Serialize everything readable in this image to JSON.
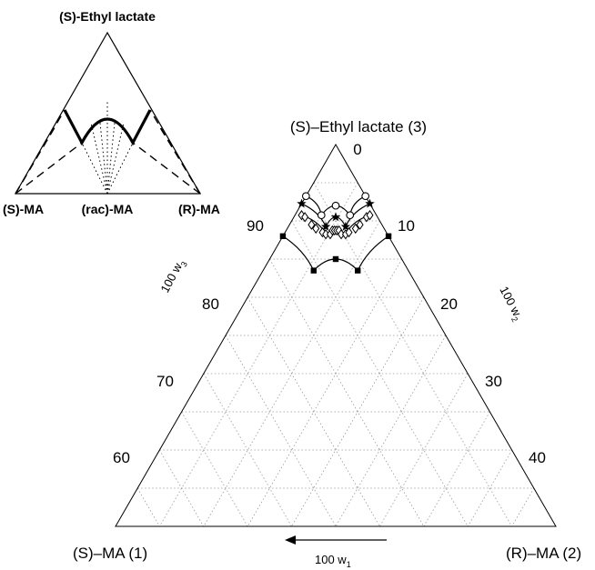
{
  "chart_data": [
    {
      "type": "ternary-schematic",
      "labels": {
        "top": "(S)-Ethyl lactate",
        "left": "(S)-MA",
        "middle": "(rac)-MA",
        "right": "(R)-MA"
      }
    },
    {
      "type": "ternary",
      "labels": {
        "top": "(S)–Ethyl lactate (3)",
        "left": "(S)–MA (1)",
        "right": "(R)–MA (2)",
        "axis_w1": "100 w",
        "axis_w1_sub": "1",
        "axis_w2": "100 w",
        "axis_w2_sub": "2",
        "axis_w3": "100 w",
        "axis_w3_sub": "3",
        "top_value": "0"
      },
      "ticks_w3": [
        "90",
        "80",
        "70",
        "60"
      ],
      "ticks_w2": [
        "10",
        "20",
        "30",
        "40"
      ],
      "grid": true,
      "series": [
        {
          "marker": "circle",
          "points": [
            {
              "w1": 13.5,
              "w2": 0.0,
              "w3": 86.5
            },
            {
              "w1": 12.5,
              "w2": 6.0,
              "w3": 81.5
            },
            {
              "w1": 8.0,
              "w2": 8.0,
              "w3": 84.0
            },
            {
              "w1": 6.0,
              "w2": 12.5,
              "w3": 81.5
            },
            {
              "w1": 0.0,
              "w2": 13.5,
              "w3": 86.5
            }
          ]
        },
        {
          "marker": "star",
          "points": [
            {
              "w1": 15.5,
              "w2": 0.0,
              "w3": 84.5
            },
            {
              "w1": 13.0,
              "w2": 8.5,
              "w3": 78.5
            },
            {
              "w1": 9.5,
              "w2": 9.5,
              "w3": 81.0
            },
            {
              "w1": 8.5,
              "w2": 13.0,
              "w3": 78.5
            },
            {
              "w1": 0.0,
              "w2": 15.5,
              "w3": 84.5
            }
          ]
        },
        {
          "marker": "diamond",
          "points": [
            {
              "w1": 17.0,
              "w2": 1.5,
              "w3": 81.5
            },
            {
              "w1": 16.5,
              "w2": 2.5,
              "w3": 81.0
            },
            {
              "w1": 16.0,
              "w2": 5.0,
              "w3": 79.0
            },
            {
              "w1": 15.5,
              "w2": 6.5,
              "w3": 78.0
            },
            {
              "w1": 14.5,
              "w2": 8.5,
              "w3": 77.0
            },
            {
              "w1": 14.0,
              "w2": 9.5,
              "w3": 76.5
            },
            {
              "w1": 13.0,
              "w2": 10.5,
              "w3": 76.5
            },
            {
              "w1": 12.0,
              "w2": 10.5,
              "w3": 77.5
            },
            {
              "w1": 11.5,
              "w2": 11.0,
              "w3": 77.5
            },
            {
              "w1": 11.0,
              "w2": 11.5,
              "w3": 77.5
            },
            {
              "w1": 10.5,
              "w2": 12.0,
              "w3": 77.5
            },
            {
              "w1": 10.5,
              "w2": 13.0,
              "w3": 76.5
            },
            {
              "w1": 9.5,
              "w2": 14.0,
              "w3": 76.5
            },
            {
              "w1": 8.5,
              "w2": 14.5,
              "w3": 77.0
            },
            {
              "w1": 6.5,
              "w2": 15.5,
              "w3": 78.0
            },
            {
              "w1": 5.0,
              "w2": 16.0,
              "w3": 79.0
            },
            {
              "w1": 2.5,
              "w2": 16.5,
              "w3": 81.0
            },
            {
              "w1": 1.5,
              "w2": 17.0,
              "w3": 81.5
            }
          ]
        },
        {
          "marker": "square",
          "points": [
            {
              "w1": 24.0,
              "w2": 0.0,
              "w3": 76.0
            },
            {
              "w1": 21.5,
              "w2": 11.5,
              "w3": 67.0
            },
            {
              "w1": 15.0,
              "w2": 15.0,
              "w3": 70.0
            },
            {
              "w1": 11.5,
              "w2": 21.5,
              "w3": 67.0
            },
            {
              "w1": 0.0,
              "w2": 24.0,
              "w3": 76.0
            }
          ]
        }
      ]
    }
  ]
}
